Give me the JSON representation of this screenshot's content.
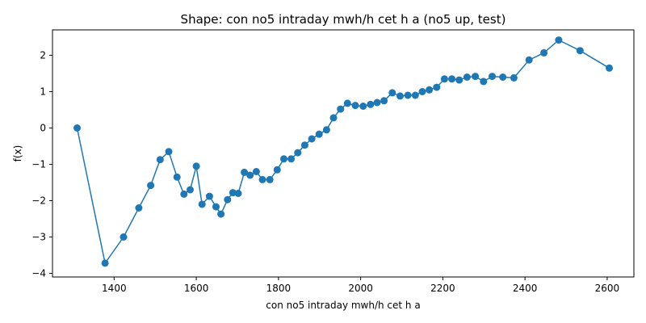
{
  "chart_data": {
    "type": "line",
    "title": "Shape: con no5 intraday mwh/h cet h a (no5 up, test)",
    "xlabel": "con no5 intraday mwh/h cet h a",
    "ylabel": "f(x)",
    "xlim": [
      1250,
      2665
    ],
    "ylim": [
      -4.1,
      2.7
    ],
    "xticks": [
      1400,
      1600,
      1800,
      2000,
      2200,
      2400,
      2600
    ],
    "yticks": [
      -4,
      -3,
      -2,
      -1,
      0,
      1,
      2
    ],
    "grid": false,
    "colors": {
      "series": "#1f77b4"
    },
    "series": [
      {
        "x": [
          1310,
          1378,
          1423,
          1460,
          1489,
          1512,
          1533,
          1553,
          1570,
          1585,
          1600,
          1614,
          1632,
          1648,
          1660,
          1676,
          1689,
          1702,
          1717,
          1731,
          1746,
          1761,
          1779,
          1797,
          1813,
          1831,
          1847,
          1864,
          1881,
          1899,
          1917,
          1934,
          1951,
          1968,
          1987,
          2006,
          2024,
          2040,
          2057,
          2077,
          2096,
          2115,
          2133,
          2150,
          2167,
          2185,
          2204,
          2222,
          2240,
          2259,
          2279,
          2299,
          2320,
          2346,
          2373,
          2410,
          2446,
          2482,
          2534,
          2605
        ],
        "y": [
          0.0,
          -3.72,
          -3.0,
          -2.2,
          -1.58,
          -0.87,
          -0.65,
          -1.35,
          -1.82,
          -1.7,
          -1.05,
          -2.1,
          -1.88,
          -2.17,
          -2.37,
          -1.97,
          -1.78,
          -1.8,
          -1.22,
          -1.3,
          -1.2,
          -1.42,
          -1.42,
          -1.15,
          -0.85,
          -0.85,
          -0.68,
          -0.47,
          -0.3,
          -0.17,
          -0.05,
          0.28,
          0.52,
          0.68,
          0.62,
          0.6,
          0.65,
          0.7,
          0.75,
          0.97,
          0.88,
          0.9,
          0.9,
          1.0,
          1.05,
          1.12,
          1.35,
          1.35,
          1.32,
          1.4,
          1.42,
          1.28,
          1.42,
          1.4,
          1.38,
          1.87,
          2.07,
          2.42,
          2.13,
          1.65
        ]
      }
    ]
  }
}
